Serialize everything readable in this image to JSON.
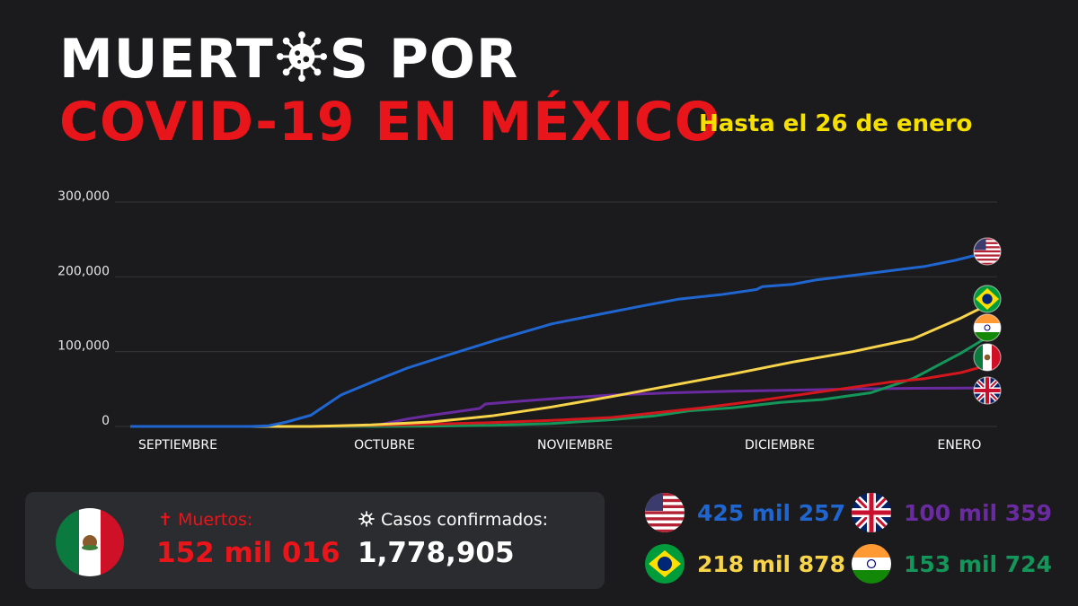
{
  "title": {
    "line1_before": "MUERT",
    "line1_after": "S POR",
    "line2": "COVID-19 EN MÉXICO",
    "subtitle": "Hasta el 26 de enero"
  },
  "colors": {
    "usa": "#1f66d1",
    "brazil": "#f7d44a",
    "india": "#14965a",
    "mexico": "#d4161d",
    "uk": "#6a2aa0",
    "accent_red": "#e8151b",
    "accent_yellow": "#f6e000"
  },
  "chart_data": {
    "type": "line",
    "title": "",
    "xlabel": "",
    "ylabel": "",
    "categories": [
      "SEPTIEMBRE",
      "OCTUBRE",
      "NOVIEMBRE",
      "DICIEMBRE",
      "ENERO"
    ],
    "y_ticks": [
      "300,000",
      "200,000",
      "100,000",
      "0"
    ],
    "ylim": [
      0,
      300000
    ],
    "grid": true,
    "series": [
      {
        "id": "usa",
        "color": "#1f66d1",
        "flag": "usa",
        "points": [
          [
            0,
            0
          ],
          [
            2,
            0
          ],
          [
            2.3,
            1000
          ],
          [
            2.6,
            6000
          ],
          [
            3.0,
            15000
          ],
          [
            3.5,
            42000
          ],
          [
            4.1,
            62000
          ],
          [
            4.6,
            78000
          ],
          [
            5.3,
            96000
          ],
          [
            6.1,
            116000
          ],
          [
            7.0,
            137000
          ],
          [
            7.8,
            150000
          ],
          [
            8.5,
            161000
          ],
          [
            9.1,
            170000
          ],
          [
            9.8,
            176000
          ],
          [
            10.4,
            183000
          ],
          [
            10.5,
            187000
          ],
          [
            11.0,
            190000
          ],
          [
            11.4,
            196000
          ],
          [
            12.0,
            202000
          ],
          [
            12.6,
            208000
          ],
          [
            13.2,
            214000
          ],
          [
            13.7,
            222000
          ],
          [
            14.0,
            228000
          ],
          [
            14.25,
            232000
          ]
        ]
      },
      {
        "id": "brazil",
        "color": "#f7d44a",
        "flag": "brazil",
        "points": [
          [
            0,
            0
          ],
          [
            3,
            0
          ],
          [
            4,
            2000
          ],
          [
            5,
            6000
          ],
          [
            6,
            14000
          ],
          [
            7,
            26000
          ],
          [
            8,
            40000
          ],
          [
            9,
            55000
          ],
          [
            10,
            70000
          ],
          [
            11,
            86000
          ],
          [
            12,
            100000
          ],
          [
            13,
            117000
          ],
          [
            13.8,
            145000
          ],
          [
            14.25,
            163000
          ]
        ]
      },
      {
        "id": "india",
        "color": "#14965a",
        "flag": "india",
        "points": [
          [
            0,
            0
          ],
          [
            4,
            0
          ],
          [
            5,
            500
          ],
          [
            6,
            1500
          ],
          [
            7,
            4000
          ],
          [
            8,
            9000
          ],
          [
            8.7,
            14000
          ],
          [
            9.3,
            21000
          ],
          [
            10,
            25000
          ],
          [
            10.8,
            32000
          ],
          [
            11.5,
            36000
          ],
          [
            12.3,
            45000
          ],
          [
            13,
            64000
          ],
          [
            13.8,
            98000
          ],
          [
            14.25,
            120000
          ]
        ]
      },
      {
        "id": "mexico",
        "color": "#d4161d",
        "flag": "mexico",
        "points": [
          [
            0,
            0
          ],
          [
            3,
            0
          ],
          [
            4,
            1500
          ],
          [
            5,
            3000
          ],
          [
            6,
            5000
          ],
          [
            7,
            8000
          ],
          [
            8,
            12000
          ],
          [
            8.7,
            18000
          ],
          [
            9.5,
            25000
          ],
          [
            10.3,
            33000
          ],
          [
            11,
            41000
          ],
          [
            11.8,
            50000
          ],
          [
            12.6,
            59000
          ],
          [
            13.2,
            64000
          ],
          [
            13.8,
            72000
          ],
          [
            14.25,
            82000
          ]
        ]
      },
      {
        "id": "uk",
        "color": "#6a2aa0",
        "flag": "uk",
        "points": [
          [
            0,
            0
          ],
          [
            4,
            0
          ],
          [
            4.6,
            10000
          ],
          [
            5,
            15000
          ],
          [
            5.8,
            24000
          ],
          [
            5.9,
            30000
          ],
          [
            6.5,
            34000
          ],
          [
            7.2,
            38000
          ],
          [
            8,
            42000
          ],
          [
            9,
            45000
          ],
          [
            10,
            47000
          ],
          [
            11,
            48500
          ],
          [
            12,
            50000
          ],
          [
            13,
            51000
          ],
          [
            14.25,
            51500
          ]
        ]
      }
    ]
  },
  "panel": {
    "muertos_label": "✝ Muertos:",
    "muertos_value": "152 mil 016",
    "casos_label": "Casos confirmados:",
    "casos_value": "1,778,905"
  },
  "stats": [
    {
      "country": "usa",
      "flag_icon": "usa-flag-icon",
      "value": "425 mil 257",
      "color": "#1f66d1"
    },
    {
      "country": "uk",
      "flag_icon": "uk-flag-icon",
      "value": "100 mil 359",
      "color": "#6a2aa0"
    },
    {
      "country": "brazil",
      "flag_icon": "brazil-flag-icon",
      "value": "218 mil 878",
      "color": "#f7d44a"
    },
    {
      "country": "india",
      "flag_icon": "india-flag-icon",
      "value": "153 mil 724",
      "color": "#14965a"
    }
  ]
}
